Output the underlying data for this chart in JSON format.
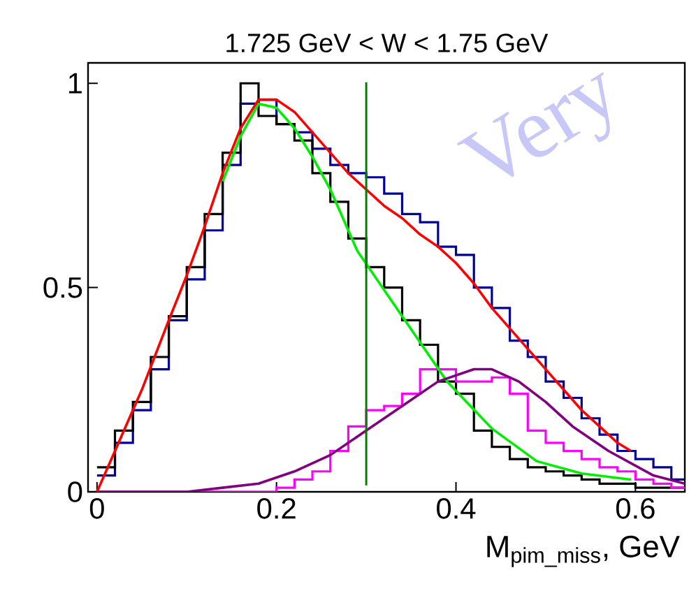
{
  "chart_data": {
    "type": "histogram",
    "title": "1.725 GeV < W < 1.75 GeV",
    "xlabel": "M$_{pim_miss}$, GeV",
    "xlim": [
      -0.01,
      0.655
    ],
    "ylim": [
      0,
      1.05
    ],
    "xticks": [
      0,
      0.2,
      0.4,
      0.6
    ],
    "yticks": [
      0,
      0.5,
      1
    ],
    "bins": [
      0,
      0.02,
      0.04,
      0.06,
      0.08,
      0.1,
      0.12,
      0.14,
      0.16,
      0.18,
      0.2,
      0.22,
      0.24,
      0.26,
      0.28,
      0.3,
      0.32,
      0.34,
      0.36,
      0.38,
      0.4,
      0.42,
      0.44,
      0.46,
      0.48,
      0.5,
      0.52,
      0.54,
      0.56,
      0.58,
      0.6,
      0.62,
      0.64,
      0.66
    ],
    "series": [
      {
        "color": "#000099",
        "values": [
          0.04,
          0.12,
          0.2,
          0.3,
          0.42,
          0.52,
          0.64,
          0.8,
          0.95,
          0.96,
          0.9,
          0.88,
          0.84,
          0.8,
          0.78,
          0.77,
          0.73,
          0.68,
          0.66,
          0.6,
          0.58,
          0.5,
          0.45,
          0.37,
          0.33,
          0.27,
          0.23,
          0.18,
          0.14,
          0.1,
          0.08,
          0.06,
          0.03
        ]
      },
      {
        "color": "#000000",
        "values": [
          0.06,
          0.15,
          0.22,
          0.33,
          0.43,
          0.55,
          0.68,
          0.83,
          1.0,
          0.92,
          0.9,
          0.86,
          0.78,
          0.71,
          0.62,
          0.55,
          0.5,
          0.42,
          0.36,
          0.27,
          0.24,
          0.15,
          0.11,
          0.08,
          0.06,
          0.05,
          0.04,
          0.03,
          0.02,
          0.02,
          0.01,
          0.01,
          0.01
        ]
      },
      {
        "color": "#ff00ff",
        "values": [
          0,
          0,
          0,
          0,
          0,
          0,
          0,
          0,
          0,
          0,
          0.01,
          0.03,
          0.05,
          0.1,
          0.16,
          0.2,
          0.21,
          0.24,
          0.3,
          0.3,
          0.27,
          0.27,
          0.28,
          0.24,
          0.15,
          0.12,
          0.1,
          0.08,
          0.06,
          0.05,
          0.03,
          0.02,
          0.01
        ]
      },
      {
        "type": "line",
        "color": "#00ee00",
        "x": [
          0.14,
          0.16,
          0.18,
          0.2,
          0.22,
          0.24,
          0.26,
          0.28,
          0.29,
          0.34,
          0.39,
          0.44,
          0.49,
          0.54,
          0.595
        ],
        "values": [
          0.76,
          0.87,
          0.95,
          0.94,
          0.89,
          0.82,
          0.74,
          0.64,
          0.59,
          0.43,
          0.27,
          0.155,
          0.075,
          0.045,
          0.03
        ]
      },
      {
        "type": "line",
        "color": "#800080",
        "x": [
          0,
          0.1,
          0.14,
          0.18,
          0.22,
          0.26,
          0.3,
          0.34,
          0.38,
          0.42,
          0.44,
          0.47,
          0.5,
          0.53,
          0.57,
          0.62,
          0.655
        ],
        "values": [
          0,
          0,
          0.01,
          0.02,
          0.05,
          0.09,
          0.15,
          0.21,
          0.27,
          0.3,
          0.3,
          0.27,
          0.22,
          0.16,
          0.1,
          0.04,
          0.02
        ]
      },
      {
        "type": "line",
        "color": "#ff0000",
        "x": [
          0,
          0.02,
          0.05,
          0.08,
          0.1,
          0.12,
          0.14,
          0.16,
          0.18,
          0.2,
          0.22,
          0.24,
          0.26,
          0.28,
          0.3,
          0.32,
          0.34,
          0.36,
          0.38,
          0.4,
          0.42,
          0.44,
          0.46,
          0.48,
          0.5,
          0.52,
          0.54,
          0.56,
          0.58,
          0.595
        ],
        "values": [
          0,
          0.1,
          0.25,
          0.42,
          0.53,
          0.65,
          0.78,
          0.89,
          0.96,
          0.96,
          0.93,
          0.88,
          0.83,
          0.78,
          0.74,
          0.7,
          0.67,
          0.63,
          0.6,
          0.56,
          0.51,
          0.45,
          0.4,
          0.35,
          0.3,
          0.25,
          0.2,
          0.16,
          0.12,
          0.1
        ]
      }
    ],
    "ref_lines": [
      {
        "axis": "x",
        "value": 0.3,
        "color": "#008000"
      }
    ],
    "annotations": [
      "Very"
    ],
    "grid": false
  }
}
